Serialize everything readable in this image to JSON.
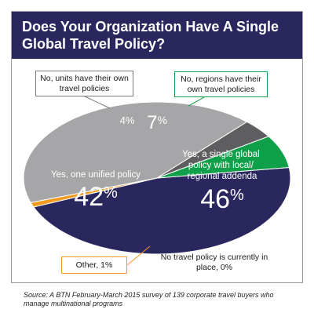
{
  "chart_data": {
    "type": "pie",
    "title": "Does Your Organization Have A Single Global Travel Policy?",
    "slices": [
      {
        "label": "Yes, a single global policy with local/ regional addenda",
        "value": 46,
        "color": "#29275e"
      },
      {
        "label": "No travel policy is currently in place, 0%",
        "value": 0,
        "color": "#29275e"
      },
      {
        "label": "Other, 1%",
        "value": 1,
        "color": "#f39a21"
      },
      {
        "label": "Yes, one unified policy",
        "value": 42,
        "color": "#a6a6a8"
      },
      {
        "label": "No, units have their own travel policies",
        "value": 4,
        "color": "#5e5e60"
      },
      {
        "label": "No, regions have their own travel policies",
        "value": 7,
        "color": "#11a04a"
      }
    ]
  },
  "labels": {
    "title": "Does Your Organization Have A Single Global Travel Policy?",
    "units_callout": "No, units have their own travel policies",
    "regions_callout": "No, regions have their own travel policies",
    "other_callout": "Other, 1%",
    "none_note": "No travel policy is currently in place, 0%",
    "unified_label": "Yes, one unified policy",
    "global_label": "Yes, a single global policy with local/ regional addenda",
    "pct_unified": "42",
    "pct_global": "46",
    "pct_units": "4%",
    "pct_regions": "7",
    "pct_sign": "%",
    "source": "Source: A BTN February-March 2015 survey of 139 corporate travel buyers who manage multinational programs"
  }
}
